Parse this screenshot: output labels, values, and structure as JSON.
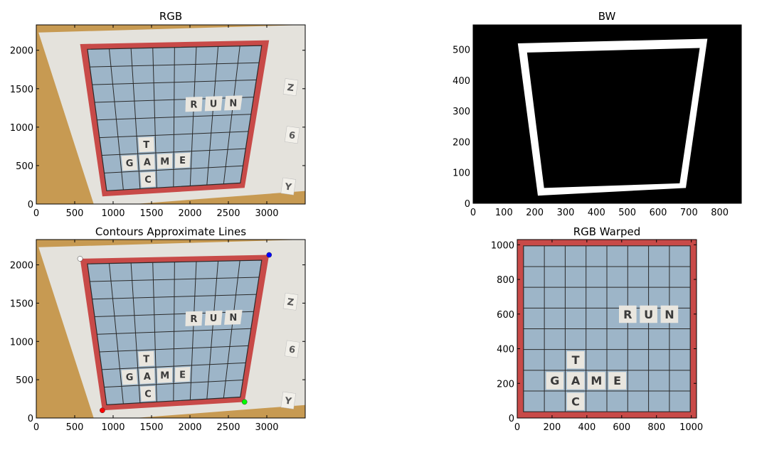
{
  "colors": {
    "background": "#ffffff",
    "wood": "#c79a52",
    "paper": "#e4e2dc",
    "board_red": "#c84a48",
    "cell_blue": "#9db5c8",
    "grid_line": "#2a2a2a",
    "tile": "#e9e6df",
    "tile_text": "#3a3a3a",
    "bw_black": "#000000",
    "bw_white": "#ffffff",
    "corner_red": "#ff0000",
    "corner_green": "#00ff00",
    "corner_blue": "#0000ff",
    "corner_white": "#ffffff"
  },
  "chart_data": [
    {
      "type": "image",
      "title": "RGB",
      "xlim": [
        0,
        3500
      ],
      "ylim": [
        2330,
        0
      ],
      "xticks": [
        "0",
        "500",
        "1000",
        "1500",
        "2000",
        "2500",
        "3000"
      ],
      "yticks": [
        "0",
        "500",
        "1000",
        "1500",
        "2000"
      ],
      "tile_words": [
        "GAME",
        "CAT",
        "RUN"
      ],
      "side_letters": [
        "Y",
        "6",
        "Z"
      ]
    },
    {
      "type": "image",
      "title": "BW",
      "xlim": [
        0,
        870
      ],
      "ylim": [
        580,
        0
      ],
      "xticks": [
        "0",
        "100",
        "200",
        "300",
        "400",
        "500",
        "600",
        "700",
        "800"
      ],
      "yticks": [
        "0",
        "100",
        "200",
        "300",
        "400",
        "500"
      ],
      "quad_outer": [
        [
          210,
          25
        ],
        [
          690,
          50
        ],
        [
          760,
          535
        ],
        [
          145,
          520
        ]
      ],
      "quad_inner": [
        [
          230,
          50
        ],
        [
          670,
          65
        ],
        [
          735,
          505
        ],
        [
          175,
          490
        ]
      ]
    },
    {
      "type": "image",
      "title": "Contours Approximate Lines",
      "xlim": [
        0,
        3500
      ],
      "ylim": [
        2330,
        0
      ],
      "xticks": [
        "0",
        "500",
        "1000",
        "1500",
        "2000",
        "2500",
        "3000"
      ],
      "yticks": [
        "0",
        "500",
        "1000",
        "1500",
        "2000"
      ],
      "corners": [
        {
          "x": 860,
          "y": 100,
          "color": "red"
        },
        {
          "x": 2710,
          "y": 210,
          "color": "green"
        },
        {
          "x": 3030,
          "y": 2130,
          "color": "blue"
        },
        {
          "x": 570,
          "y": 2080,
          "color": "white"
        }
      ]
    },
    {
      "type": "image",
      "title": "RGB Warped",
      "xlim": [
        0,
        1030
      ],
      "ylim": [
        1030,
        0
      ],
      "xticks": [
        "0",
        "200",
        "400",
        "600",
        "800",
        "1000"
      ],
      "yticks": [
        "0",
        "200",
        "400",
        "600",
        "800",
        "1000"
      ]
    }
  ]
}
